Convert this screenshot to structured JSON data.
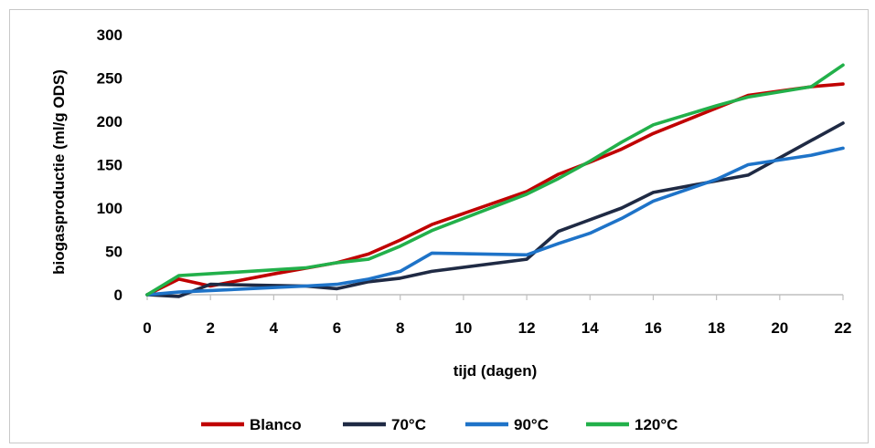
{
  "chart_data": {
    "type": "line",
    "title": "",
    "xlabel": "tijd (dagen)",
    "ylabel": "biogasproductie (ml/g ODS)",
    "xlim": [
      0,
      22
    ],
    "ylim": [
      0,
      300
    ],
    "xticks": [
      0,
      2,
      4,
      6,
      8,
      10,
      12,
      14,
      16,
      18,
      20,
      22
    ],
    "yticks": [
      0,
      50,
      100,
      150,
      200,
      250,
      300
    ],
    "grid": false,
    "legend_position": "bottom",
    "series": [
      {
        "name": "Blanco",
        "color": "#C00000",
        "points": [
          [
            0,
            0
          ],
          [
            1,
            18
          ],
          [
            2,
            10
          ],
          [
            4,
            24
          ],
          [
            6,
            37
          ],
          [
            7,
            47
          ],
          [
            8,
            63
          ],
          [
            9,
            81
          ],
          [
            12,
            119
          ],
          [
            13,
            139
          ],
          [
            14,
            153
          ],
          [
            15,
            168
          ],
          [
            16,
            186
          ],
          [
            19,
            230
          ],
          [
            21,
            240
          ],
          [
            22,
            243
          ]
        ]
      },
      {
        "name": "70°C",
        "color": "#1F2A44",
        "points": [
          [
            0,
            0
          ],
          [
            1,
            -2
          ],
          [
            2,
            12
          ],
          [
            5,
            10
          ],
          [
            6,
            7
          ],
          [
            7,
            15
          ],
          [
            8,
            19
          ],
          [
            9,
            27
          ],
          [
            12,
            41
          ],
          [
            13,
            73
          ],
          [
            15,
            100
          ],
          [
            16,
            118
          ],
          [
            19,
            138
          ],
          [
            22,
            198
          ]
        ]
      },
      {
        "name": "90°C",
        "color": "#1E73C8",
        "points": [
          [
            0,
            0
          ],
          [
            1,
            3
          ],
          [
            5,
            10
          ],
          [
            6,
            12
          ],
          [
            7,
            18
          ],
          [
            8,
            27
          ],
          [
            9,
            48
          ],
          [
            12,
            46
          ],
          [
            13,
            59
          ],
          [
            14,
            71
          ],
          [
            15,
            88
          ],
          [
            16,
            108
          ],
          [
            18,
            133
          ],
          [
            19,
            150
          ],
          [
            21,
            161
          ],
          [
            22,
            169
          ]
        ]
      },
      {
        "name": "120°C",
        "color": "#22B04A",
        "points": [
          [
            0,
            0
          ],
          [
            1,
            22
          ],
          [
            5,
            31
          ],
          [
            6,
            37
          ],
          [
            7,
            41
          ],
          [
            8,
            56
          ],
          [
            9,
            74
          ],
          [
            12,
            116
          ],
          [
            13,
            134
          ],
          [
            14,
            154
          ],
          [
            15,
            176
          ],
          [
            16,
            196
          ],
          [
            18,
            218
          ],
          [
            19,
            228
          ],
          [
            21,
            240
          ],
          [
            22,
            265
          ]
        ]
      }
    ]
  }
}
